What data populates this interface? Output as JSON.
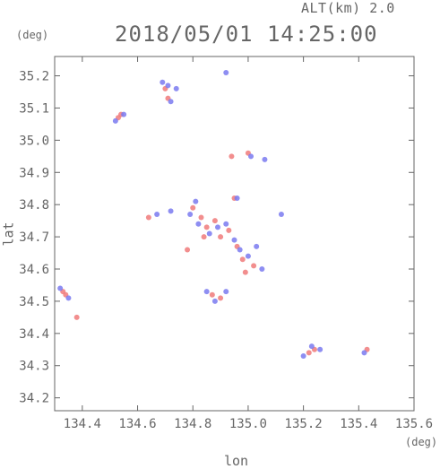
{
  "header": {
    "altitude": "ALT(km)  2.0",
    "timestamp": "2018/05/01 14:25:00",
    "y_unit": "(deg)",
    "x_unit": "(deg)"
  },
  "colors": {
    "axis": "#666666",
    "positive": "#f07a7a",
    "negative": "#7a7af0"
  },
  "chart_data": {
    "type": "scatter",
    "xlabel": "lon",
    "ylabel": "lat",
    "xlim": [
      134.3,
      135.6
    ],
    "ylim": [
      34.16,
      35.26
    ],
    "xticks": [
      "134.4",
      "134.6",
      "134.8",
      "135.0",
      "135.2",
      "135.4",
      "135.6"
    ],
    "yticks": [
      "34.2",
      "34.3",
      "34.4",
      "34.5",
      "34.6",
      "34.7",
      "34.8",
      "34.9",
      "35.0",
      "35.1",
      "35.2"
    ],
    "grid": false,
    "series": [
      {
        "color_key": "positive",
        "points": [
          [
            134.54,
            35.08
          ],
          [
            134.53,
            35.07
          ],
          [
            134.33,
            34.53
          ],
          [
            134.34,
            34.52
          ],
          [
            134.38,
            34.45
          ],
          [
            134.7,
            35.16
          ],
          [
            134.71,
            35.13
          ],
          [
            134.94,
            34.95
          ],
          [
            135.0,
            34.96
          ],
          [
            134.64,
            34.76
          ],
          [
            134.8,
            34.79
          ],
          [
            134.83,
            34.76
          ],
          [
            134.85,
            34.73
          ],
          [
            134.88,
            34.75
          ],
          [
            134.9,
            34.7
          ],
          [
            134.93,
            34.72
          ],
          [
            134.96,
            34.67
          ],
          [
            134.98,
            34.63
          ],
          [
            135.02,
            34.61
          ],
          [
            134.78,
            34.66
          ],
          [
            134.87,
            34.52
          ],
          [
            134.9,
            34.51
          ],
          [
            135.22,
            34.34
          ],
          [
            135.24,
            34.35
          ],
          [
            135.43,
            34.35
          ],
          [
            134.95,
            34.82
          ],
          [
            134.84,
            34.7
          ],
          [
            134.99,
            34.59
          ]
        ]
      },
      {
        "color_key": "negative",
        "points": [
          [
            134.55,
            35.08
          ],
          [
            134.52,
            35.06
          ],
          [
            134.32,
            34.54
          ],
          [
            134.35,
            34.51
          ],
          [
            134.69,
            35.18
          ],
          [
            134.71,
            35.17
          ],
          [
            134.74,
            35.16
          ],
          [
            134.72,
            35.12
          ],
          [
            134.92,
            35.21
          ],
          [
            135.01,
            34.95
          ],
          [
            135.06,
            34.94
          ],
          [
            134.67,
            34.77
          ],
          [
            134.72,
            34.78
          ],
          [
            134.81,
            34.81
          ],
          [
            134.79,
            34.77
          ],
          [
            134.82,
            34.74
          ],
          [
            134.86,
            34.71
          ],
          [
            134.89,
            34.73
          ],
          [
            134.92,
            34.74
          ],
          [
            134.95,
            34.69
          ],
          [
            134.97,
            34.66
          ],
          [
            135.0,
            34.64
          ],
          [
            135.03,
            34.67
          ],
          [
            135.05,
            34.6
          ],
          [
            134.85,
            34.53
          ],
          [
            134.88,
            34.5
          ],
          [
            134.92,
            34.53
          ],
          [
            135.2,
            34.33
          ],
          [
            135.23,
            34.36
          ],
          [
            135.26,
            34.35
          ],
          [
            135.42,
            34.34
          ],
          [
            135.12,
            34.77
          ],
          [
            134.96,
            34.82
          ]
        ]
      }
    ]
  }
}
